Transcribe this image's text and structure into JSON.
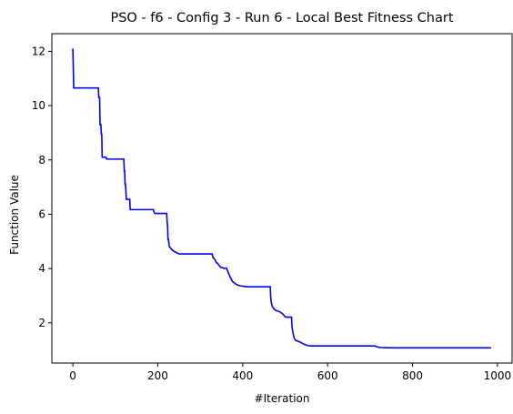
{
  "chart_data": {
    "type": "line",
    "title": "PSO - f6 - Config 3 - Run 6 - Local Best Fitness Chart",
    "xlabel": "#Iteration",
    "ylabel": "Function Value",
    "xlim": [
      -49.5,
      1034.5
    ],
    "ylim": [
      0.52,
      12.65
    ],
    "xticks": [
      0,
      200,
      400,
      600,
      800,
      1000
    ],
    "yticks": [
      2,
      4,
      6,
      8,
      10,
      12
    ],
    "grid": false,
    "legend": "none",
    "series": [
      {
        "color": "#0000ff",
        "x": [
          0,
          2,
          3,
          60,
          61,
          63,
          64,
          66,
          67,
          68,
          69,
          71,
          72,
          78,
          79,
          80,
          120,
          121,
          122,
          123,
          124,
          126,
          127,
          128,
          134,
          135,
          136,
          190,
          191,
          193,
          195,
          221,
          222,
          223,
          224,
          225,
          226,
          227,
          230,
          232,
          234,
          240,
          245,
          250,
          255,
          328,
          330,
          332,
          334,
          336,
          338,
          340,
          342,
          344,
          348,
          352,
          356,
          362,
          364,
          366,
          368,
          370,
          372,
          374,
          376,
          378,
          380,
          382,
          384,
          386,
          390,
          395,
          400,
          405,
          410,
          415,
          420,
          440,
          465,
          466,
          467,
          468,
          469,
          470,
          471,
          473,
          475,
          478,
          482,
          486,
          490,
          494,
          497,
          500,
          505,
          515,
          516,
          517,
          518,
          519,
          520,
          521,
          522,
          523,
          525,
          528,
          531,
          534,
          537,
          540,
          545,
          550,
          555,
          560,
          600,
          650,
          700,
          712,
          715,
          718,
          722,
          726,
          730,
          740,
          760,
          800,
          850,
          900,
          950,
          985
        ],
        "y": [
          12.1,
          10.65,
          10.65,
          10.65,
          10.3,
          10.3,
          9.3,
          9.3,
          8.95,
          8.95,
          8.1,
          8.1,
          8.1,
          8.1,
          8.05,
          8.03,
          8.03,
          7.6,
          7.6,
          7.1,
          7.1,
          6.55,
          6.55,
          6.55,
          6.55,
          6.17,
          6.17,
          6.17,
          6.08,
          6.03,
          6.03,
          6.03,
          5.72,
          5.6,
          5.08,
          5.08,
          4.95,
          4.82,
          4.75,
          4.72,
          4.68,
          4.62,
          4.58,
          4.54,
          4.54,
          4.54,
          4.4,
          4.38,
          4.35,
          4.28,
          4.22,
          4.2,
          4.17,
          4.12,
          4.05,
          4.03,
          4.01,
          4.01,
          3.93,
          3.85,
          3.78,
          3.7,
          3.65,
          3.58,
          3.52,
          3.5,
          3.48,
          3.45,
          3.43,
          3.41,
          3.38,
          3.36,
          3.35,
          3.34,
          3.33,
          3.33,
          3.33,
          3.33,
          3.33,
          2.95,
          2.78,
          2.71,
          2.65,
          2.6,
          2.57,
          2.53,
          2.49,
          2.46,
          2.44,
          2.42,
          2.38,
          2.33,
          2.28,
          2.22,
          2.21,
          2.21,
          1.9,
          1.75,
          1.68,
          1.6,
          1.52,
          1.46,
          1.42,
          1.38,
          1.35,
          1.34,
          1.32,
          1.3,
          1.28,
          1.25,
          1.21,
          1.18,
          1.16,
          1.15,
          1.15,
          1.15,
          1.15,
          1.15,
          1.12,
          1.11,
          1.1,
          1.09,
          1.09,
          1.085,
          1.08,
          1.08,
          1.08,
          1.08,
          1.08,
          1.08
        ]
      }
    ]
  }
}
